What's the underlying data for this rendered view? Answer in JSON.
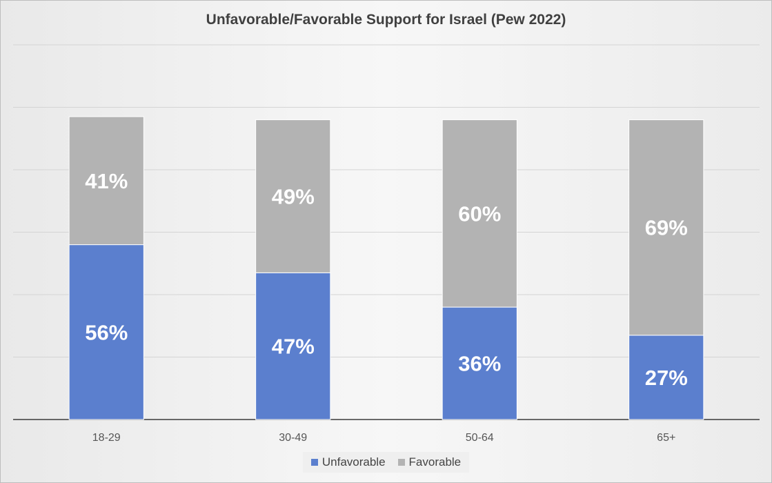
{
  "chart_data": {
    "type": "bar",
    "stacked": true,
    "title": "Unfavorable/Favorable Support for Israel (Pew 2022)",
    "categories": [
      "18-29",
      "30-49",
      "50-64",
      "65+"
    ],
    "series": [
      {
        "name": "Unfavorable",
        "values": [
          56,
          47,
          36,
          27
        ],
        "labels": [
          "56%",
          "47%",
          "36%",
          "27%"
        ],
        "color": "#5b7fce"
      },
      {
        "name": "Favorable",
        "values": [
          41,
          49,
          60,
          69
        ],
        "labels": [
          "41%",
          "49%",
          "60%",
          "69%"
        ],
        "color": "#b3b3b3"
      }
    ],
    "ylim": [
      0,
      120
    ],
    "grid": true,
    "legend_position": "bottom"
  }
}
